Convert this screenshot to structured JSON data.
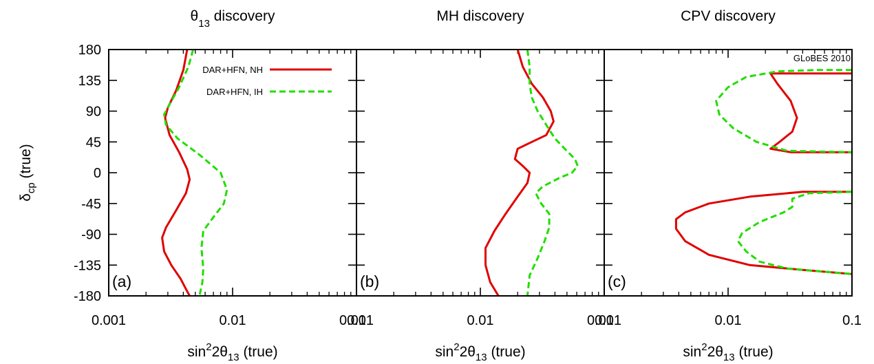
{
  "figure": {
    "ylabel": {
      "main": "δ",
      "sub": "cp",
      "rest": " (true)"
    },
    "corner_label": "GLoBES 2010"
  },
  "colors": {
    "NH": "#e00000",
    "IH": "#22dd00",
    "frame": "#000000"
  },
  "chart_data": [
    {
      "type": "line",
      "panel_tag": "(a)",
      "title": {
        "pre": "θ",
        "sub": "13",
        "post": " discovery"
      },
      "xlabel": {
        "pre": "sin",
        "sup": "2",
        "mid": "2θ",
        "sub": "13",
        "post": " (true)"
      },
      "xscale": "log",
      "xlim": [
        0.001,
        0.1
      ],
      "ylim": [
        -180,
        180
      ],
      "xticks": [
        "0.001",
        "0.01",
        "0.1"
      ],
      "yticks": [
        "180",
        "135",
        "90",
        "45",
        "0",
        "-45",
        "-90",
        "-135",
        "-180"
      ],
      "legend": [
        {
          "label": "DAR+HFN, NH",
          "series": "NH"
        },
        {
          "label": "DAR+HFN, IH",
          "series": "IH"
        }
      ],
      "series": [
        {
          "name": "DAR+HFN, NH",
          "key": "NH",
          "style": "solid",
          "closed": false,
          "points": [
            [
              0.0043,
              180
            ],
            [
              0.004,
              150
            ],
            [
              0.0035,
              120
            ],
            [
              0.003,
              95
            ],
            [
              0.00285,
              80
            ],
            [
              0.0031,
              55
            ],
            [
              0.0037,
              30
            ],
            [
              0.0043,
              5
            ],
            [
              0.0045,
              -10
            ],
            [
              0.0042,
              -30
            ],
            [
              0.0035,
              -55
            ],
            [
              0.0029,
              -80
            ],
            [
              0.0027,
              -95
            ],
            [
              0.0028,
              -115
            ],
            [
              0.0032,
              -135
            ],
            [
              0.0038,
              -155
            ],
            [
              0.0042,
              -170
            ],
            [
              0.0045,
              -180
            ]
          ]
        },
        {
          "name": "DAR+HFN, IH",
          "key": "IH",
          "style": "dashed",
          "closed": false,
          "points": [
            [
              0.0048,
              180
            ],
            [
              0.0044,
              155
            ],
            [
              0.0037,
              125
            ],
            [
              0.0031,
              100
            ],
            [
              0.0028,
              85
            ],
            [
              0.0029,
              70
            ],
            [
              0.0036,
              50
            ],
            [
              0.0055,
              25
            ],
            [
              0.008,
              0
            ],
            [
              0.009,
              -25
            ],
            [
              0.0085,
              -45
            ],
            [
              0.007,
              -65
            ],
            [
              0.0058,
              -85
            ],
            [
              0.0056,
              -110
            ],
            [
              0.0058,
              -140
            ],
            [
              0.0057,
              -160
            ],
            [
              0.0054,
              -180
            ]
          ]
        }
      ]
    },
    {
      "type": "line",
      "panel_tag": "(b)",
      "title": {
        "pre": "MH discovery",
        "sub": "",
        "post": ""
      },
      "xlabel": {
        "pre": "sin",
        "sup": "2",
        "mid": "2θ",
        "sub": "13",
        "post": " (true)"
      },
      "xscale": "log",
      "xlim": [
        0.001,
        0.1
      ],
      "ylim": [
        -180,
        180
      ],
      "xticks": [
        "0.001",
        "0.01",
        "0.1"
      ],
      "yticks": [
        "180",
        "135",
        "90",
        "45",
        "0",
        "-45",
        "-90",
        "-135",
        "-180"
      ],
      "series": [
        {
          "name": "DAR+HFN, NH",
          "key": "NH",
          "style": "solid",
          "closed": false,
          "points": [
            [
              0.02,
              180
            ],
            [
              0.022,
              155
            ],
            [
              0.026,
              130
            ],
            [
              0.032,
              110
            ],
            [
              0.037,
              90
            ],
            [
              0.039,
              75
            ],
            [
              0.034,
              55
            ],
            [
              0.026,
              45
            ],
            [
              0.02,
              35
            ],
            [
              0.019,
              20
            ],
            [
              0.022,
              10
            ],
            [
              0.025,
              0
            ],
            [
              0.024,
              -15
            ],
            [
              0.02,
              -35
            ],
            [
              0.016,
              -60
            ],
            [
              0.013,
              -85
            ],
            [
              0.011,
              -110
            ],
            [
              0.011,
              -135
            ],
            [
              0.012,
              -160
            ],
            [
              0.014,
              -180
            ]
          ]
        },
        {
          "name": "DAR+HFN, IH",
          "key": "IH",
          "style": "dashed",
          "closed": false,
          "points": [
            [
              0.024,
              180
            ],
            [
              0.025,
              155
            ],
            [
              0.025,
              130
            ],
            [
              0.026,
              110
            ],
            [
              0.029,
              90
            ],
            [
              0.034,
              70
            ],
            [
              0.04,
              50
            ],
            [
              0.048,
              35
            ],
            [
              0.058,
              20
            ],
            [
              0.061,
              10
            ],
            [
              0.055,
              0
            ],
            [
              0.043,
              -8
            ],
            [
              0.032,
              -20
            ],
            [
              0.028,
              -30
            ],
            [
              0.031,
              -45
            ],
            [
              0.036,
              -60
            ],
            [
              0.036,
              -80
            ],
            [
              0.033,
              -100
            ],
            [
              0.029,
              -125
            ],
            [
              0.025,
              -150
            ],
            [
              0.024,
              -180
            ]
          ]
        }
      ]
    },
    {
      "type": "line",
      "panel_tag": "(c)",
      "title": {
        "pre": "CPV discovery",
        "sub": "",
        "post": ""
      },
      "xlabel": {
        "pre": "sin",
        "sup": "2",
        "mid": "2θ",
        "sub": "13",
        "post": " (true)"
      },
      "xscale": "log",
      "xlim": [
        0.001,
        0.1
      ],
      "ylim": [
        -180,
        180
      ],
      "xticks": [
        "0.001",
        "0.01",
        "0.1"
      ],
      "yticks": [
        "180",
        "135",
        "90",
        "45",
        "0",
        "-45",
        "-90",
        "-135",
        "-180"
      ],
      "series": [
        {
          "name": "DAR+HFN, NH",
          "key": "NH",
          "style": "solid",
          "closed": false,
          "points": [
            [
              0.1,
              145
            ],
            [
              0.03,
              145
            ],
            [
              0.022,
              145
            ],
            [
              0.025,
              130
            ],
            [
              0.032,
              105
            ],
            [
              0.036,
              80
            ],
            [
              0.033,
              60
            ],
            [
              0.026,
              45
            ],
            [
              0.022,
              35
            ],
            [
              0.032,
              30
            ],
            [
              0.1,
              30
            ]
          ]
        },
        {
          "name": "DAR+HFN, NH",
          "key": "NH",
          "style": "solid",
          "closed": false,
          "points": [
            [
              0.1,
              -28
            ],
            [
              0.04,
              -28
            ],
            [
              0.015,
              -35
            ],
            [
              0.007,
              -45
            ],
            [
              0.0045,
              -58
            ],
            [
              0.0038,
              -68
            ],
            [
              0.0038,
              -82
            ],
            [
              0.0045,
              -100
            ],
            [
              0.007,
              -120
            ],
            [
              0.015,
              -135
            ],
            [
              0.04,
              -142
            ],
            [
              0.1,
              -148
            ]
          ]
        },
        {
          "name": "DAR+HFN, IH",
          "key": "IH",
          "style": "dashed",
          "closed": false,
          "points": [
            [
              0.1,
              150
            ],
            [
              0.05,
              150
            ],
            [
              0.025,
              148
            ],
            [
              0.014,
              140
            ],
            [
              0.01,
              125
            ],
            [
              0.008,
              105
            ],
            [
              0.0085,
              85
            ],
            [
              0.011,
              65
            ],
            [
              0.017,
              45
            ],
            [
              0.03,
              32
            ],
            [
              0.1,
              30
            ]
          ]
        },
        {
          "name": "DAR+HFN, IH",
          "key": "IH",
          "style": "dashed",
          "closed": false,
          "points": [
            [
              0.1,
              -28
            ],
            [
              0.045,
              -30
            ],
            [
              0.033,
              -38
            ],
            [
              0.033,
              -50
            ],
            [
              0.028,
              -58
            ],
            [
              0.018,
              -72
            ],
            [
              0.013,
              -88
            ],
            [
              0.012,
              -100
            ],
            [
              0.014,
              -115
            ],
            [
              0.018,
              -130
            ],
            [
              0.03,
              -140
            ],
            [
              0.1,
              -148
            ]
          ]
        }
      ]
    }
  ]
}
